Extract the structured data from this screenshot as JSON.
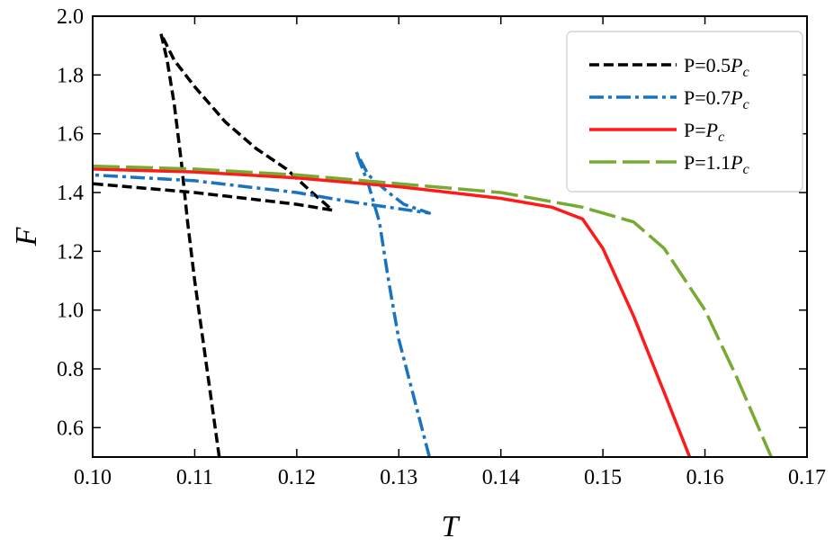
{
  "chart_data": {
    "type": "line",
    "xlabel": "T",
    "ylabel": "F",
    "xlim": [
      0.1,
      0.17
    ],
    "ylim": [
      0.5,
      2.0
    ],
    "x_ticks": [
      0.1,
      0.11,
      0.12,
      0.13,
      0.14,
      0.15,
      0.16,
      0.17
    ],
    "x_tick_labels": [
      "0.10",
      "0.11",
      "0.12",
      "0.13",
      "0.14",
      "0.15",
      "0.16",
      "0.17"
    ],
    "y_ticks": [
      0.6,
      0.8,
      1.0,
      1.2,
      1.4,
      1.6,
      1.8,
      2.0
    ],
    "y_tick_labels": [
      "0.6",
      "0.8",
      "1.0",
      "1.2",
      "1.4",
      "1.6",
      "1.8",
      "2.0"
    ],
    "grid": false,
    "legend_position": "top-right",
    "series": [
      {
        "name": "P=0.5P_c",
        "legend_prefix": "P=0.5",
        "legend_symbol": "P",
        "legend_sub": "c",
        "color": "#000000",
        "dash": "dash",
        "points": [
          [
            0.1124,
            0.5
          ],
          [
            0.1116,
            0.7
          ],
          [
            0.1108,
            0.9
          ],
          [
            0.11,
            1.1
          ],
          [
            0.1093,
            1.3
          ],
          [
            0.1087,
            1.5
          ],
          [
            0.108,
            1.7
          ],
          [
            0.1073,
            1.85
          ],
          [
            0.1067,
            1.94
          ],
          [
            0.108,
            1.85
          ],
          [
            0.11,
            1.76
          ],
          [
            0.113,
            1.64
          ],
          [
            0.116,
            1.55
          ],
          [
            0.119,
            1.48
          ],
          [
            0.1215,
            1.4
          ],
          [
            0.1235,
            1.34
          ],
          [
            0.12,
            1.36
          ],
          [
            0.115,
            1.38
          ],
          [
            0.11,
            1.4
          ],
          [
            0.105,
            1.415
          ],
          [
            0.1,
            1.43
          ]
        ]
      },
      {
        "name": "P=0.7P_c",
        "legend_prefix": "P=0.7",
        "legend_symbol": "P",
        "legend_sub": "c",
        "color": "#1a73c0",
        "dash": "dashdot",
        "points": [
          [
            0.133,
            0.5
          ],
          [
            0.1315,
            0.7
          ],
          [
            0.13,
            0.9
          ],
          [
            0.129,
            1.1
          ],
          [
            0.1281,
            1.3
          ],
          [
            0.127,
            1.43
          ],
          [
            0.1258,
            1.54
          ],
          [
            0.127,
            1.46
          ],
          [
            0.129,
            1.4
          ],
          [
            0.1305,
            1.36
          ],
          [
            0.133,
            1.33
          ],
          [
            0.125,
            1.37
          ],
          [
            0.12,
            1.4
          ],
          [
            0.115,
            1.42
          ],
          [
            0.11,
            1.44
          ],
          [
            0.105,
            1.45
          ],
          [
            0.1,
            1.46
          ]
        ]
      },
      {
        "name": "P=P_c",
        "legend_prefix": "P=",
        "legend_symbol": "P",
        "legend_sub": "c",
        "color": "#ff1a1a",
        "dash": "solid",
        "points": [
          [
            0.1,
            1.48
          ],
          [
            0.11,
            1.47
          ],
          [
            0.12,
            1.45
          ],
          [
            0.13,
            1.42
          ],
          [
            0.14,
            1.38
          ],
          [
            0.145,
            1.35
          ],
          [
            0.148,
            1.31
          ],
          [
            0.15,
            1.21
          ],
          [
            0.153,
            0.98
          ],
          [
            0.156,
            0.72
          ],
          [
            0.1585,
            0.5
          ]
        ]
      },
      {
        "name": "P=1.1P_c",
        "legend_prefix": "P=1.1",
        "legend_symbol": "P",
        "legend_sub": "c",
        "color": "#77aa33",
        "dash": "longdash",
        "points": [
          [
            0.1,
            1.49
          ],
          [
            0.11,
            1.48
          ],
          [
            0.12,
            1.46
          ],
          [
            0.13,
            1.43
          ],
          [
            0.14,
            1.4
          ],
          [
            0.148,
            1.35
          ],
          [
            0.153,
            1.3
          ],
          [
            0.156,
            1.21
          ],
          [
            0.16,
            1.0
          ],
          [
            0.163,
            0.78
          ],
          [
            0.1665,
            0.5
          ]
        ]
      }
    ]
  }
}
